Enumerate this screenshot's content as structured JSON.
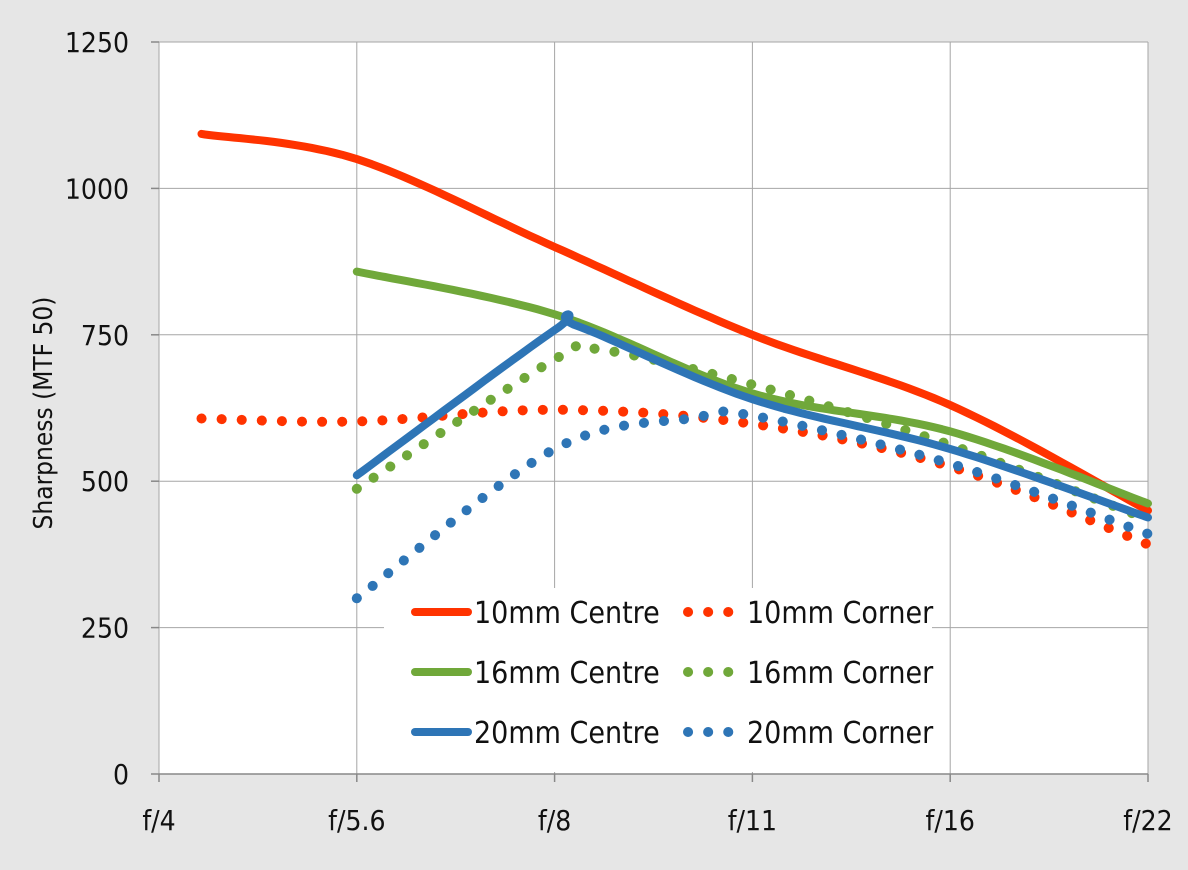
{
  "chart_data": {
    "type": "line",
    "title": "",
    "xlabel": "",
    "ylabel": "Sharpness  (MTF 50)",
    "categories": [
      "f/4",
      "f/5.6",
      "f/8",
      "f/11",
      "f/16",
      "f/22"
    ],
    "y_ticks": [
      "0",
      "250",
      "500",
      "750",
      "1000",
      "1250"
    ],
    "ylim": [
      0,
      1250
    ],
    "grid": true,
    "legend_position": "bottom-center",
    "series": [
      {
        "name": "10mm Centre",
        "style": "solid",
        "color": "#ff3300",
        "x": [
          4.3,
          5.6,
          8,
          11,
          16,
          22
        ],
        "y": [
          1093,
          1050,
          900,
          750,
          630,
          450
        ]
      },
      {
        "name": "10mm Corner",
        "style": "dotted",
        "color": "#ff3300",
        "x": [
          4.3,
          5.6,
          8,
          11,
          16,
          22
        ],
        "y": [
          607,
          602,
          622,
          598,
          525,
          392
        ]
      },
      {
        "name": "16mm Centre",
        "style": "solid",
        "color": "#70a83a",
        "x": [
          5.6,
          8,
          11,
          16,
          22
        ],
        "y": [
          858,
          785,
          650,
          585,
          462
        ]
      },
      {
        "name": "16mm Corner",
        "style": "dotted",
        "color": "#70a83a",
        "x": [
          5.6,
          8,
          8.6,
          11,
          16,
          22
        ],
        "y": [
          487,
          708,
          725,
          665,
          562,
          435
        ]
      },
      {
        "name": "20mm Centre",
        "style": "solid",
        "color": "#2e75b6",
        "x": [
          5.6,
          8,
          8.3,
          11,
          16,
          22
        ],
        "y": [
          510,
          758,
          765,
          640,
          555,
          438
        ]
      },
      {
        "name": "20mm Corner",
        "style": "dotted",
        "color": "#2e75b6",
        "x": [
          5.6,
          8,
          10,
          11,
          16,
          22
        ],
        "y": [
          300,
          555,
          608,
          612,
          530,
          410
        ]
      }
    ]
  }
}
